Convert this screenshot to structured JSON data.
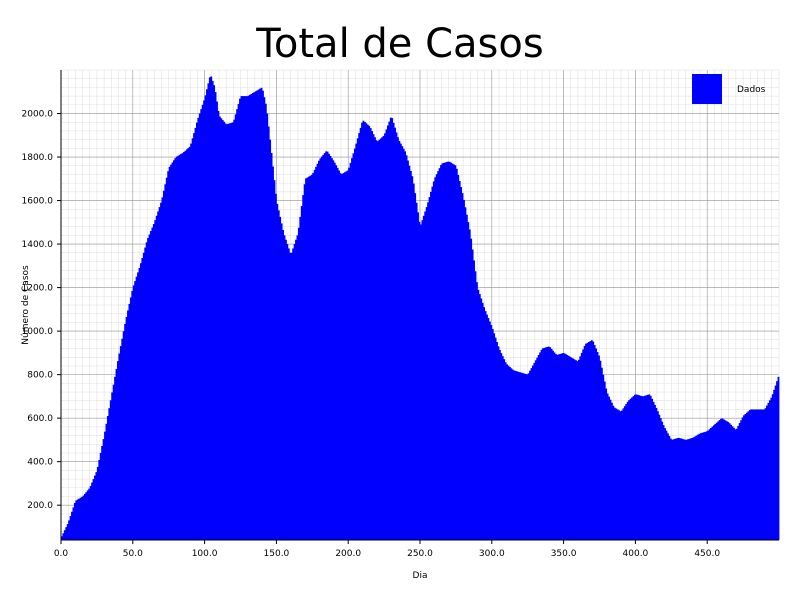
{
  "chart_data": {
    "type": "bar",
    "title": "Total de Casos",
    "xlabel": "Dia",
    "ylabel": "Número de Casos",
    "xlim": [
      0,
      500
    ],
    "ylim": [
      40,
      2200
    ],
    "x_ticks": [
      0,
      50,
      100,
      150,
      200,
      250,
      300,
      350,
      400,
      450
    ],
    "x_tick_labels": [
      "0.0",
      "50.0",
      "100.0",
      "150.0",
      "200.0",
      "250.0",
      "300.0",
      "350.0",
      "400.0",
      "450.0"
    ],
    "y_ticks": [
      200,
      400,
      600,
      800,
      1000,
      1200,
      1400,
      1600,
      1800,
      2000
    ],
    "y_tick_labels": [
      "200.0",
      "400.0",
      "600.0",
      "800.0",
      "1000.0",
      "1200.0",
      "1400.0",
      "1600.0",
      "1800.0",
      "2000.0"
    ],
    "grid": true,
    "minor_grid": true,
    "legend_position": "top-right",
    "color": "#0000ff",
    "series": [
      {
        "name": "Dados",
        "points": [
          [
            0,
            50
          ],
          [
            5,
            120
          ],
          [
            10,
            220
          ],
          [
            15,
            240
          ],
          [
            20,
            280
          ],
          [
            25,
            360
          ],
          [
            30,
            520
          ],
          [
            35,
            700
          ],
          [
            40,
            880
          ],
          [
            45,
            1050
          ],
          [
            50,
            1200
          ],
          [
            55,
            1300
          ],
          [
            60,
            1420
          ],
          [
            65,
            1500
          ],
          [
            70,
            1600
          ],
          [
            75,
            1750
          ],
          [
            80,
            1800
          ],
          [
            85,
            1820
          ],
          [
            90,
            1850
          ],
          [
            95,
            1970
          ],
          [
            100,
            2070
          ],
          [
            104,
            2180
          ],
          [
            107,
            2120
          ],
          [
            110,
            1990
          ],
          [
            115,
            1950
          ],
          [
            120,
            1960
          ],
          [
            125,
            2080
          ],
          [
            130,
            2080
          ],
          [
            135,
            2100
          ],
          [
            140,
            2120
          ],
          [
            143,
            2030
          ],
          [
            146,
            1850
          ],
          [
            150,
            1600
          ],
          [
            155,
            1450
          ],
          [
            160,
            1350
          ],
          [
            165,
            1450
          ],
          [
            170,
            1700
          ],
          [
            175,
            1720
          ],
          [
            180,
            1790
          ],
          [
            185,
            1830
          ],
          [
            190,
            1780
          ],
          [
            195,
            1720
          ],
          [
            200,
            1740
          ],
          [
            205,
            1850
          ],
          [
            210,
            1970
          ],
          [
            215,
            1940
          ],
          [
            220,
            1870
          ],
          [
            225,
            1900
          ],
          [
            230,
            1990
          ],
          [
            235,
            1880
          ],
          [
            240,
            1820
          ],
          [
            245,
            1700
          ],
          [
            250,
            1480
          ],
          [
            255,
            1580
          ],
          [
            260,
            1700
          ],
          [
            265,
            1770
          ],
          [
            270,
            1780
          ],
          [
            275,
            1760
          ],
          [
            280,
            1620
          ],
          [
            285,
            1450
          ],
          [
            290,
            1200
          ],
          [
            295,
            1100
          ],
          [
            300,
            1020
          ],
          [
            305,
            920
          ],
          [
            310,
            850
          ],
          [
            315,
            820
          ],
          [
            320,
            810
          ],
          [
            325,
            800
          ],
          [
            330,
            860
          ],
          [
            335,
            920
          ],
          [
            340,
            930
          ],
          [
            345,
            890
          ],
          [
            350,
            900
          ],
          [
            355,
            880
          ],
          [
            360,
            860
          ],
          [
            365,
            940
          ],
          [
            370,
            960
          ],
          [
            375,
            880
          ],
          [
            380,
            720
          ],
          [
            385,
            650
          ],
          [
            390,
            630
          ],
          [
            395,
            680
          ],
          [
            400,
            710
          ],
          [
            405,
            700
          ],
          [
            410,
            710
          ],
          [
            415,
            640
          ],
          [
            420,
            560
          ],
          [
            425,
            500
          ],
          [
            430,
            510
          ],
          [
            435,
            500
          ],
          [
            440,
            510
          ],
          [
            445,
            530
          ],
          [
            450,
            540
          ],
          [
            455,
            570
          ],
          [
            460,
            600
          ],
          [
            465,
            580
          ],
          [
            470,
            545
          ],
          [
            475,
            610
          ],
          [
            480,
            640
          ],
          [
            485,
            640
          ],
          [
            490,
            640
          ],
          [
            495,
            700
          ],
          [
            500,
            800
          ]
        ]
      }
    ]
  }
}
